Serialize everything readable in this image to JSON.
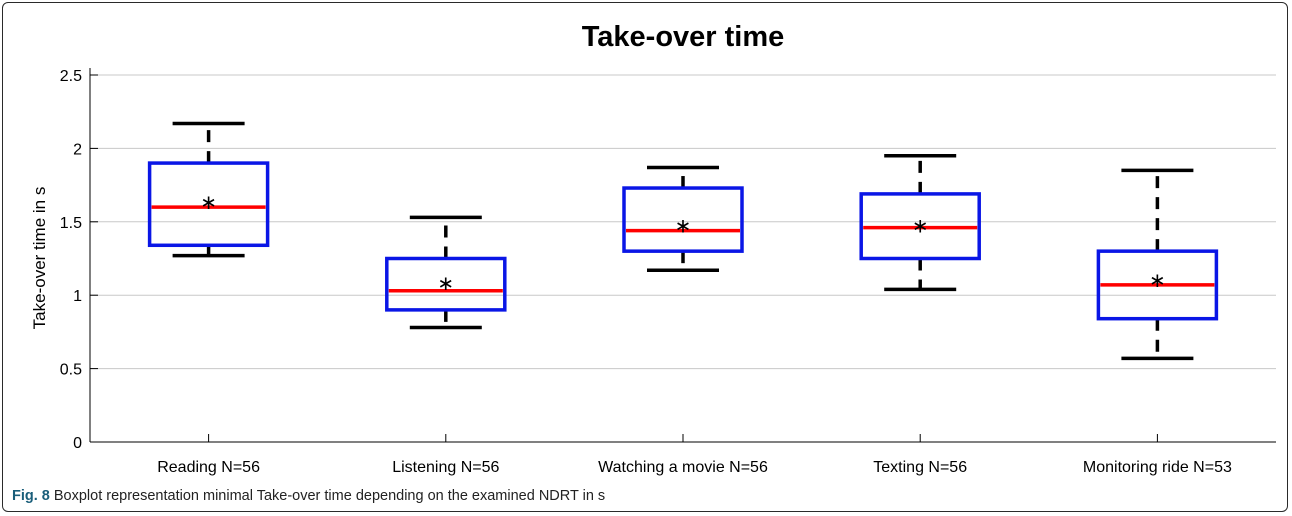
{
  "chart_data": {
    "type": "boxplot",
    "title": "Take-over time",
    "xlabel": "",
    "ylabel": "Take-over time in s",
    "ylim": [
      0,
      2.6
    ],
    "yticks": [
      0,
      0.5,
      1,
      1.5,
      2,
      2.5
    ],
    "ytick_labels": [
      "0",
      "0.5",
      "1",
      "1.5",
      "2",
      "2.5"
    ],
    "grid": "horizontal",
    "categories": [
      "Reading N=56",
      "Listening N=56",
      "Watching a movie N=56",
      "Texting N=56",
      "Monitoring ride N=53"
    ],
    "boxes": [
      {
        "whisker_low": 1.27,
        "q1": 1.34,
        "median": 1.6,
        "q3": 1.9,
        "whisker_high": 2.17,
        "mean": 1.64
      },
      {
        "whisker_low": 0.78,
        "q1": 0.9,
        "median": 1.03,
        "q3": 1.25,
        "whisker_high": 1.53,
        "mean": 1.09
      },
      {
        "whisker_low": 1.17,
        "q1": 1.3,
        "median": 1.44,
        "q3": 1.73,
        "whisker_high": 1.87,
        "mean": 1.48
      },
      {
        "whisker_low": 1.04,
        "q1": 1.25,
        "median": 1.46,
        "q3": 1.69,
        "whisker_high": 1.95,
        "mean": 1.48
      },
      {
        "whisker_low": 0.57,
        "q1": 0.84,
        "median": 1.07,
        "q3": 1.3,
        "whisker_high": 1.85,
        "mean": 1.11
      }
    ],
    "colors": {
      "box": "#0a16e6",
      "median": "#ff0000",
      "whisker": "#000000",
      "grid": "#c8c8c8",
      "axis": "#000000"
    }
  },
  "caption": {
    "label": "Fig. 8",
    "text": "Boxplot representation minimal Take-over time depending on the examined NDRT in s"
  }
}
